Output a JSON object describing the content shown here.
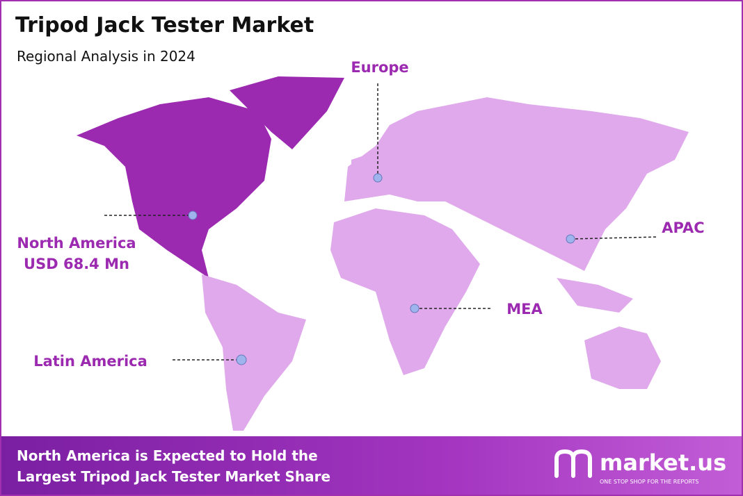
{
  "header": {
    "title": "Tripod Jack Tester Market",
    "subtitle": "Regional Analysis in 2024"
  },
  "regions": [
    {
      "name": "North America",
      "value_label": "USD 68.4 Mn"
    },
    {
      "name": "Europe"
    },
    {
      "name": "APAC"
    },
    {
      "name": "MEA"
    },
    {
      "name": "Latin America"
    }
  ],
  "footer": {
    "headline": [
      "North America is Expected to Hold the",
      "Largest Tripod Jack Tester Market Share"
    ],
    "brand": "market.us",
    "tagline": "ONE STOP SHOP FOR THE REPORTS"
  }
}
